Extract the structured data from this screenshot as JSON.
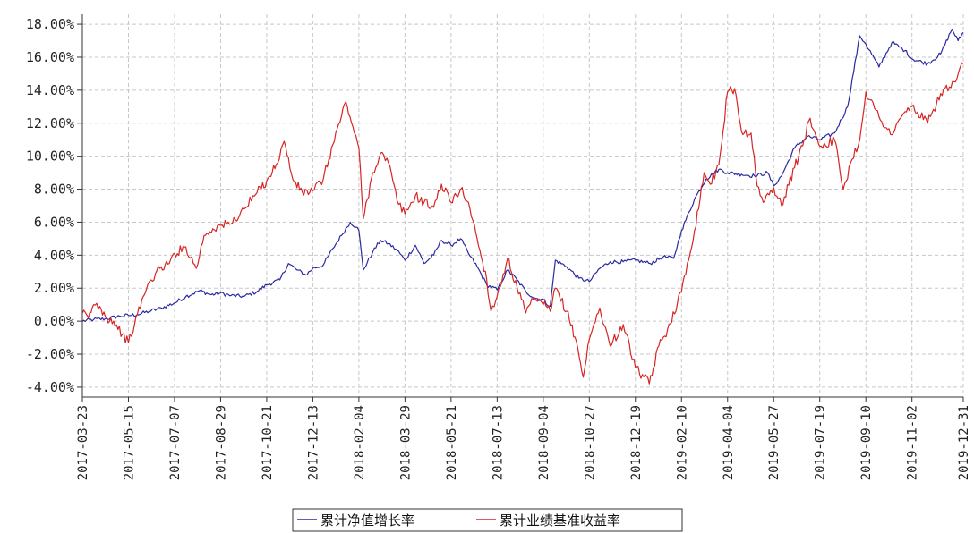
{
  "chart_data": {
    "type": "line",
    "title": "",
    "xlabel": "",
    "ylabel": "",
    "x_tick_labels": [
      "2017-03-23",
      "2017-05-15",
      "2017-07-07",
      "2017-08-29",
      "2017-10-21",
      "2017-12-13",
      "2018-02-04",
      "2018-03-29",
      "2018-05-21",
      "2018-07-13",
      "2018-09-04",
      "2018-10-27",
      "2018-12-19",
      "2019-02-10",
      "2019-04-04",
      "2019-05-27",
      "2019-07-19",
      "2019-09-10",
      "2019-11-02",
      "2019-12-31"
    ],
    "y_tick_labels": [
      "-4.00%",
      "-2.00%",
      "0.00%",
      "2.00%",
      "4.00%",
      "6.00%",
      "8.00%",
      "10.00%",
      "12.00%",
      "14.00%",
      "16.00%",
      "18.00%"
    ],
    "ylim": [
      -4.6,
      18.6
    ],
    "xlim": [
      "2017-03-23",
      "2019-12-31"
    ],
    "grid": true,
    "legend_position": "bottom-center",
    "series": [
      {
        "name": "累计净值增长率",
        "color": "#2a2aa0",
        "points": [
          [
            "2017-03-23",
            0.0
          ],
          [
            "2017-04-05",
            0.1
          ],
          [
            "2017-04-20",
            0.15
          ],
          [
            "2017-05-05",
            0.3
          ],
          [
            "2017-05-15",
            0.35
          ],
          [
            "2017-05-25",
            0.4
          ],
          [
            "2017-06-08",
            0.6
          ],
          [
            "2017-06-22",
            0.8
          ],
          [
            "2017-07-07",
            1.1
          ],
          [
            "2017-07-20",
            1.5
          ],
          [
            "2017-08-05",
            1.85
          ],
          [
            "2017-08-18",
            1.6
          ],
          [
            "2017-08-29",
            1.7
          ],
          [
            "2017-09-10",
            1.55
          ],
          [
            "2017-09-25",
            1.5
          ],
          [
            "2017-10-10",
            1.8
          ],
          [
            "2017-10-21",
            2.2
          ],
          [
            "2017-11-05",
            2.5
          ],
          [
            "2017-11-15",
            3.5
          ],
          [
            "2017-11-25",
            3.1
          ],
          [
            "2017-12-05",
            2.8
          ],
          [
            "2017-12-13",
            3.2
          ],
          [
            "2017-12-25",
            3.4
          ],
          [
            "2018-01-05",
            4.4
          ],
          [
            "2018-01-15",
            5.2
          ],
          [
            "2018-01-25",
            6.0
          ],
          [
            "2018-02-01",
            5.7
          ],
          [
            "2018-02-04",
            5.5
          ],
          [
            "2018-02-09",
            3.1
          ],
          [
            "2018-02-20",
            4.2
          ],
          [
            "2018-03-01",
            4.9
          ],
          [
            "2018-03-10",
            4.7
          ],
          [
            "2018-03-20",
            4.3
          ],
          [
            "2018-03-29",
            3.7
          ],
          [
            "2018-04-10",
            4.6
          ],
          [
            "2018-04-20",
            3.5
          ],
          [
            "2018-05-01",
            4.0
          ],
          [
            "2018-05-10",
            4.9
          ],
          [
            "2018-05-21",
            4.6
          ],
          [
            "2018-06-01",
            5.0
          ],
          [
            "2018-06-10",
            4.1
          ],
          [
            "2018-06-20",
            3.3
          ],
          [
            "2018-07-01",
            2.2
          ],
          [
            "2018-07-13",
            1.9
          ],
          [
            "2018-07-25",
            3.1
          ],
          [
            "2018-08-05",
            2.5
          ],
          [
            "2018-08-15",
            1.8
          ],
          [
            "2018-08-25",
            1.4
          ],
          [
            "2018-09-04",
            1.3
          ],
          [
            "2018-09-12",
            0.9
          ],
          [
            "2018-09-18",
            3.7
          ],
          [
            "2018-10-01",
            3.3
          ],
          [
            "2018-10-15",
            2.6
          ],
          [
            "2018-10-27",
            2.4
          ],
          [
            "2018-11-08",
            3.2
          ],
          [
            "2018-11-20",
            3.6
          ],
          [
            "2018-12-05",
            3.6
          ],
          [
            "2018-12-19",
            3.7
          ],
          [
            "2019-01-05",
            3.5
          ],
          [
            "2019-01-20",
            3.9
          ],
          [
            "2019-02-01",
            3.8
          ],
          [
            "2019-02-10",
            5.5
          ],
          [
            "2019-02-25",
            7.4
          ],
          [
            "2019-03-10",
            8.6
          ],
          [
            "2019-03-25",
            9.2
          ],
          [
            "2019-04-04",
            9.0
          ],
          [
            "2019-04-20",
            8.9
          ],
          [
            "2019-05-05",
            8.8
          ],
          [
            "2019-05-20",
            9.0
          ],
          [
            "2019-05-27",
            8.2
          ],
          [
            "2019-06-05",
            8.8
          ],
          [
            "2019-06-20",
            10.5
          ],
          [
            "2019-07-05",
            11.2
          ],
          [
            "2019-07-19",
            11.0
          ],
          [
            "2019-08-05",
            11.4
          ],
          [
            "2019-08-20",
            13.0
          ],
          [
            "2019-09-03",
            17.3
          ],
          [
            "2019-09-10",
            16.8
          ],
          [
            "2019-09-25",
            15.4
          ],
          [
            "2019-10-10",
            16.9
          ],
          [
            "2019-10-25",
            16.4
          ],
          [
            "2019-11-02",
            15.9
          ],
          [
            "2019-11-20",
            15.6
          ],
          [
            "2019-12-05",
            16.2
          ],
          [
            "2019-12-18",
            17.7
          ],
          [
            "2019-12-25",
            17.0
          ],
          [
            "2019-12-31",
            17.5
          ]
        ]
      },
      {
        "name": "累计业绩基准收益率",
        "color": "#d62525",
        "points": [
          [
            "2017-03-23",
            0.5
          ],
          [
            "2017-03-30",
            0.2
          ],
          [
            "2017-04-05",
            1.0
          ],
          [
            "2017-04-12",
            0.9
          ],
          [
            "2017-04-20",
            0.2
          ],
          [
            "2017-04-28",
            0.0
          ],
          [
            "2017-05-08",
            -0.8
          ],
          [
            "2017-05-15",
            -1.3
          ],
          [
            "2017-05-22",
            -0.2
          ],
          [
            "2017-06-01",
            1.5
          ],
          [
            "2017-06-10",
            2.5
          ],
          [
            "2017-06-20",
            3.2
          ],
          [
            "2017-07-01",
            3.5
          ],
          [
            "2017-07-07",
            4.1
          ],
          [
            "2017-07-20",
            4.5
          ],
          [
            "2017-08-01",
            3.2
          ],
          [
            "2017-08-10",
            5.2
          ],
          [
            "2017-08-20",
            5.6
          ],
          [
            "2017-08-29",
            5.8
          ],
          [
            "2017-09-10",
            5.9
          ],
          [
            "2017-09-25",
            6.8
          ],
          [
            "2017-10-10",
            7.8
          ],
          [
            "2017-10-21",
            8.5
          ],
          [
            "2017-11-01",
            9.5
          ],
          [
            "2017-11-10",
            10.9
          ],
          [
            "2017-11-20",
            8.6
          ],
          [
            "2017-12-01",
            7.8
          ],
          [
            "2017-12-13",
            7.9
          ],
          [
            "2017-12-25",
            8.6
          ],
          [
            "2018-01-05",
            10.7
          ],
          [
            "2018-01-20",
            13.3
          ],
          [
            "2018-01-28",
            11.8
          ],
          [
            "2018-02-04",
            10.5
          ],
          [
            "2018-02-09",
            6.2
          ],
          [
            "2018-02-20",
            9.0
          ],
          [
            "2018-03-01",
            10.2
          ],
          [
            "2018-03-10",
            9.6
          ],
          [
            "2018-03-20",
            7.3
          ],
          [
            "2018-03-29",
            6.5
          ],
          [
            "2018-04-10",
            7.6
          ],
          [
            "2018-04-20",
            7.2
          ],
          [
            "2018-05-01",
            6.9
          ],
          [
            "2018-05-10",
            8.3
          ],
          [
            "2018-05-21",
            7.2
          ],
          [
            "2018-06-01",
            8.0
          ],
          [
            "2018-06-10",
            7.2
          ],
          [
            "2018-06-20",
            5.0
          ],
          [
            "2018-07-01",
            2.5
          ],
          [
            "2018-07-06",
            0.6
          ],
          [
            "2018-07-13",
            1.5
          ],
          [
            "2018-07-25",
            3.8
          ],
          [
            "2018-08-05",
            2.0
          ],
          [
            "2018-08-15",
            0.5
          ],
          [
            "2018-08-25",
            1.4
          ],
          [
            "2018-09-04",
            1.0
          ],
          [
            "2018-09-12",
            0.6
          ],
          [
            "2018-09-18",
            2.0
          ],
          [
            "2018-10-01",
            0.6
          ],
          [
            "2018-10-12",
            -1.2
          ],
          [
            "2018-10-20",
            -3.4
          ],
          [
            "2018-10-27",
            -1.1
          ],
          [
            "2018-11-08",
            0.8
          ],
          [
            "2018-11-20",
            -1.5
          ],
          [
            "2018-12-05",
            -0.2
          ],
          [
            "2018-12-19",
            -2.8
          ],
          [
            "2019-01-04",
            -3.8
          ],
          [
            "2019-01-15",
            -1.5
          ],
          [
            "2019-01-25",
            -0.5
          ],
          [
            "2019-02-10",
            1.8
          ],
          [
            "2019-02-25",
            5.5
          ],
          [
            "2019-03-08",
            9.0
          ],
          [
            "2019-03-15",
            8.3
          ],
          [
            "2019-03-25",
            9.5
          ],
          [
            "2019-04-04",
            13.9
          ],
          [
            "2019-04-12",
            14.1
          ],
          [
            "2019-04-20",
            11.5
          ],
          [
            "2019-05-01",
            11.4
          ],
          [
            "2019-05-08",
            8.2
          ],
          [
            "2019-05-15",
            7.2
          ],
          [
            "2019-05-27",
            8.1
          ],
          [
            "2019-06-05",
            7.0
          ],
          [
            "2019-06-20",
            9.3
          ],
          [
            "2019-07-01",
            11.0
          ],
          [
            "2019-07-08",
            12.3
          ],
          [
            "2019-07-19",
            10.6
          ],
          [
            "2019-08-05",
            11.0
          ],
          [
            "2019-08-15",
            8.0
          ],
          [
            "2019-08-25",
            9.8
          ],
          [
            "2019-09-03",
            11.0
          ],
          [
            "2019-09-10",
            13.9
          ],
          [
            "2019-09-25",
            12.4
          ],
          [
            "2019-10-10",
            11.3
          ],
          [
            "2019-10-25",
            12.7
          ],
          [
            "2019-11-02",
            13.0
          ],
          [
            "2019-11-20",
            12.0
          ],
          [
            "2019-12-05",
            13.8
          ],
          [
            "2019-12-15",
            14.2
          ],
          [
            "2019-12-22",
            14.5
          ],
          [
            "2019-12-31",
            15.6
          ]
        ]
      }
    ]
  }
}
